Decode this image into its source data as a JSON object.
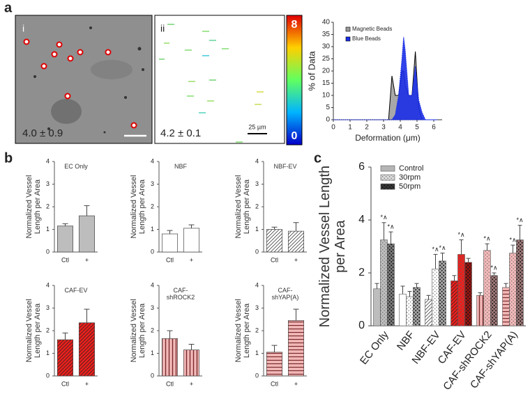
{
  "panel_labels": [
    "a",
    "b",
    "c"
  ],
  "images": [
    {
      "label": "i",
      "measurement": "4.0 ± 0.9"
    },
    {
      "label": "ii",
      "measurement": "4.2 ± 0.1",
      "scale_bar": "25 µm"
    }
  ],
  "colorbar_ticks": [
    8,
    0
  ],
  "chart_data": [
    {
      "type": "area",
      "xlabel": "Deformation (μm)",
      "ylabel": "% of Data",
      "x": [
        0,
        3.3,
        3.5,
        3.7,
        3.9,
        4.1,
        4.2,
        4.3,
        4.5,
        4.7,
        4.9,
        5.1,
        5.3,
        5.5,
        6.2
      ],
      "series": [
        {
          "name": "Magnetic Beads",
          "color": "#999999",
          "values": [
            0,
            0,
            18,
            10,
            10,
            20,
            20,
            14,
            10,
            10,
            28,
            5,
            0,
            0,
            0
          ]
        },
        {
          "name": "Blue Beads",
          "color": "#1a2ee6",
          "values": [
            0,
            0,
            0,
            2,
            10,
            25,
            34,
            28,
            10,
            10,
            22,
            8,
            3,
            0,
            0
          ]
        }
      ],
      "xlim": [
        0,
        6.5
      ],
      "xticks": [
        0,
        1,
        2,
        3,
        4,
        5,
        6
      ],
      "ylim": [
        0,
        40
      ],
      "yticks": [
        0,
        5,
        10,
        15,
        20,
        25,
        30,
        35,
        40
      ],
      "legend": "top-left"
    },
    {
      "type": "bar",
      "title": "EC Only",
      "ylabel": "Normalized Vessel Length per Area",
      "categories": [
        "Ctl",
        "+"
      ],
      "values": [
        1.15,
        1.6
      ],
      "errors": [
        0.1,
        0.45
      ],
      "color": "#bdbdbd",
      "pattern": "solid",
      "ylim": [
        0,
        4
      ],
      "yticks": [
        0,
        1,
        2,
        3,
        4
      ]
    },
    {
      "type": "bar",
      "title": "NBF",
      "ylabel": "Normalized Vessel Length per Area",
      "categories": [
        "Ctl",
        "+"
      ],
      "values": [
        0.8,
        1.05
      ],
      "errors": [
        0.15,
        0.15
      ],
      "color": "#ffffff",
      "pattern": "solid",
      "ylim": [
        0,
        4
      ],
      "yticks": [
        0,
        1,
        2,
        3,
        4
      ]
    },
    {
      "type": "bar",
      "title": "NBF-EV",
      "ylabel": "Normalized Vessel Length per Area",
      "categories": [
        "Ctl",
        "+"
      ],
      "values": [
        1.0,
        0.92
      ],
      "errors": [
        0.1,
        0.38
      ],
      "color": "#ffffff",
      "pattern": "diagonal",
      "ylim": [
        0,
        4
      ],
      "yticks": [
        0,
        1,
        2,
        3,
        4
      ]
    },
    {
      "type": "bar",
      "title": "CAF-EV",
      "ylabel": "Normalized Vessel Length per Area",
      "categories": [
        "Ctl",
        "+"
      ],
      "values": [
        1.6,
        2.35
      ],
      "errors": [
        0.3,
        0.6
      ],
      "color": "#e8201c",
      "pattern": "diagonal",
      "ylim": [
        0,
        4
      ],
      "yticks": [
        0,
        1,
        2,
        3,
        4
      ]
    },
    {
      "type": "bar",
      "title": "CAF-shROCK2",
      "ylabel": "Normalized Vessel Length per Area",
      "categories": [
        "Ctl",
        "+"
      ],
      "values": [
        1.65,
        1.15
      ],
      "errors": [
        0.35,
        0.25
      ],
      "color": "#f2b8b8",
      "pattern": "vertical",
      "ylim": [
        0,
        4
      ],
      "yticks": [
        0,
        1,
        2,
        3,
        4
      ]
    },
    {
      "type": "bar",
      "title": "CAF-shYAP(A)",
      "ylabel": "Normalized Vessel Length per Area",
      "categories": [
        "Ctl",
        "+"
      ],
      "values": [
        1.05,
        2.45
      ],
      "errors": [
        0.3,
        0.5
      ],
      "color": "#f2b8b8",
      "pattern": "horizontal",
      "ylim": [
        0,
        4
      ],
      "yticks": [
        0,
        1,
        2,
        3,
        4
      ]
    },
    {
      "type": "grouped-bar",
      "ylabel": "Normalized Vessel Length per Area",
      "categories": [
        "EC Only",
        "NBF",
        "NBF-EV",
        "CAF-EV",
        "CAF-shROCK2",
        "CAF-shYAP(A)"
      ],
      "category_colors": [
        "#bdbdbd",
        "#ffffff",
        "#ffffff",
        "#e8201c",
        "#f2b8b8",
        "#f2b8b8"
      ],
      "category_patterns": [
        "solid",
        "solid",
        "diagonal",
        "diagonal",
        "vertical",
        "horizontal"
      ],
      "series": [
        {
          "name": "Control",
          "color": "#b5b5b5",
          "values": [
            1.4,
            1.2,
            1.0,
            1.7,
            1.15,
            1.45
          ],
          "errors": [
            0.2,
            0.3,
            0.15,
            0.2,
            0.1,
            0.15
          ],
          "annotations": [
            null,
            null,
            null,
            null,
            null,
            null
          ]
        },
        {
          "name": "30rpm",
          "color": "#d9d9d9",
          "pattern": "dots",
          "values": [
            3.25,
            1.1,
            2.15,
            2.7,
            2.85,
            2.75
          ],
          "errors": [
            0.65,
            0.2,
            0.55,
            0.55,
            0.25,
            0.3
          ],
          "annotations": [
            "*∧",
            null,
            "*∧",
            "*∧",
            "*∧",
            "*∧"
          ]
        },
        {
          "name": "50rpm",
          "color": "#555555",
          "pattern": "dense-dots",
          "values": [
            3.1,
            1.45,
            2.45,
            2.4,
            1.9,
            3.25
          ],
          "errors": [
            0.45,
            0.15,
            0.3,
            0.15,
            0.1,
            0.55
          ],
          "annotations": [
            "*∧",
            null,
            "*∧",
            null,
            "*∧",
            "*∧"
          ]
        }
      ],
      "ylim": [
        0,
        6
      ],
      "yticks": [
        0,
        2,
        4,
        6
      ],
      "legend": "top-left"
    }
  ]
}
